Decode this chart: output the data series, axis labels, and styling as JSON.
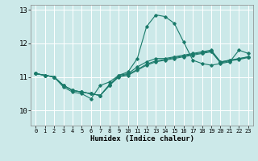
{
  "title": "",
  "xlabel": "Humidex (Indice chaleur)",
  "x_ticks": [
    0,
    1,
    2,
    3,
    4,
    5,
    6,
    7,
    8,
    9,
    10,
    11,
    12,
    13,
    14,
    15,
    16,
    17,
    18,
    19,
    20,
    21,
    22,
    23
  ],
  "xlim": [
    -0.5,
    23.5
  ],
  "ylim": [
    9.55,
    13.15
  ],
  "y_ticks": [
    10,
    11,
    12,
    13
  ],
  "bg_color": "#cce9e9",
  "line_color": "#1a7a6a",
  "grid_color": "#ffffff",
  "series": [
    [
      11.1,
      11.05,
      11.0,
      10.7,
      10.55,
      10.5,
      10.35,
      10.75,
      10.85,
      11.05,
      11.15,
      11.55,
      12.5,
      12.85,
      12.8,
      12.6,
      12.05,
      11.5,
      11.4,
      11.35,
      11.4,
      11.45,
      11.8,
      11.7
    ],
    [
      11.1,
      11.05,
      11.0,
      10.75,
      10.6,
      10.55,
      10.5,
      10.45,
      10.75,
      11.05,
      11.1,
      11.3,
      11.45,
      11.55,
      11.55,
      11.6,
      11.65,
      11.7,
      11.75,
      11.8,
      11.45,
      11.5,
      11.55,
      11.6
    ],
    [
      11.1,
      11.05,
      11.0,
      10.75,
      10.6,
      10.55,
      10.5,
      10.45,
      10.75,
      11.0,
      11.05,
      11.2,
      11.35,
      11.45,
      11.5,
      11.55,
      11.6,
      11.65,
      11.7,
      11.75,
      11.42,
      11.48,
      11.52,
      11.58
    ],
    [
      11.1,
      11.05,
      11.0,
      10.75,
      10.6,
      10.55,
      10.5,
      10.45,
      10.78,
      11.02,
      11.08,
      11.22,
      11.38,
      11.48,
      11.52,
      11.58,
      11.62,
      11.68,
      11.72,
      11.78,
      11.44,
      11.5,
      11.54,
      11.6
    ]
  ]
}
